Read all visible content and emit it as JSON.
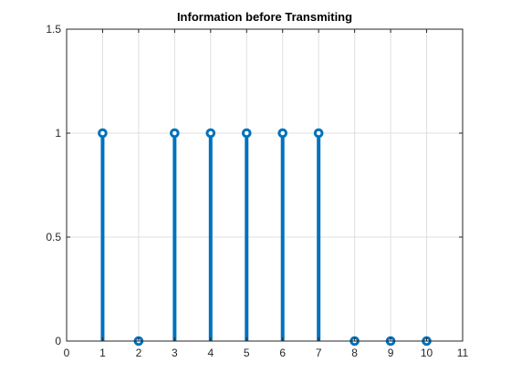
{
  "chart_data": {
    "type": "stem",
    "title": "Information before Transmiting",
    "xlabel": "",
    "ylabel": "",
    "x": [
      1,
      2,
      3,
      4,
      5,
      6,
      7,
      8,
      9,
      10
    ],
    "values": [
      1,
      0,
      1,
      1,
      1,
      1,
      1,
      0,
      0,
      0
    ],
    "xlim": [
      0,
      11
    ],
    "ylim": [
      0,
      1.5
    ],
    "xticks": [
      "0",
      "1",
      "2",
      "3",
      "4",
      "5",
      "6",
      "7",
      "8",
      "9",
      "10",
      "11"
    ],
    "yticks": [
      "0",
      "0.5",
      "1",
      "1.5"
    ],
    "grid": true,
    "marker": "circle-open",
    "stem_color": "#0072BD",
    "axes_color": "#262626",
    "grid_color": "#dfdfdf"
  }
}
